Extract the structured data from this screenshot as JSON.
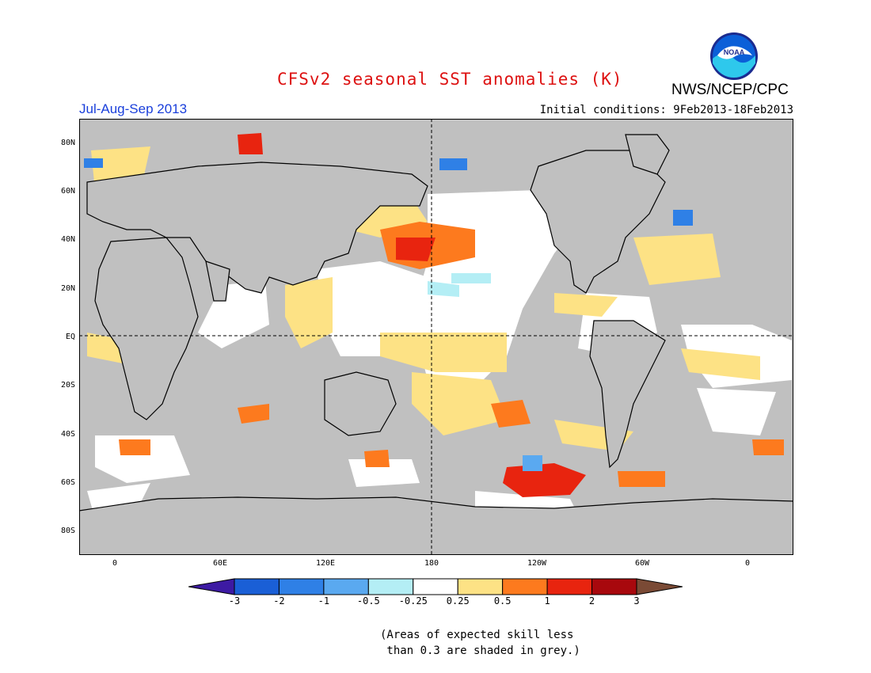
{
  "header": {
    "title": "CFSv2 seasonal SST anomalies (K)",
    "agency": "NWS/NCEP/CPC",
    "season": "Jul-Aug-Sep 2013",
    "initial_conditions": "Initial conditions: 9Feb2013-18Feb2013",
    "logo_text": "NOAA"
  },
  "map": {
    "lat_labels": [
      "80N",
      "60N",
      "40N",
      "20N",
      "EQ",
      "20S",
      "40S",
      "60S",
      "80S"
    ],
    "lon_labels": [
      "0",
      "60E",
      "120E",
      "180",
      "120W",
      "60W",
      "0"
    ],
    "grey_meaning": "low skill"
  },
  "colorbar": {
    "labels": [
      "-3",
      "-2",
      "-1",
      "-0.5",
      "-0.25",
      "0.25",
      "0.5",
      "1",
      "2",
      "3"
    ],
    "colors": [
      "#3d1aa3",
      "#1a5fd6",
      "#2f80e6",
      "#5aa9f0",
      "#b4eef5",
      "#ffffff",
      "#fde285",
      "#fd7a1e",
      "#e8240f",
      "#a8080d",
      "#7a4a35"
    ]
  },
  "footnote": {
    "line1": "(Areas of expected skill less",
    "line2": " than 0.3 are shaded in grey.)"
  }
}
